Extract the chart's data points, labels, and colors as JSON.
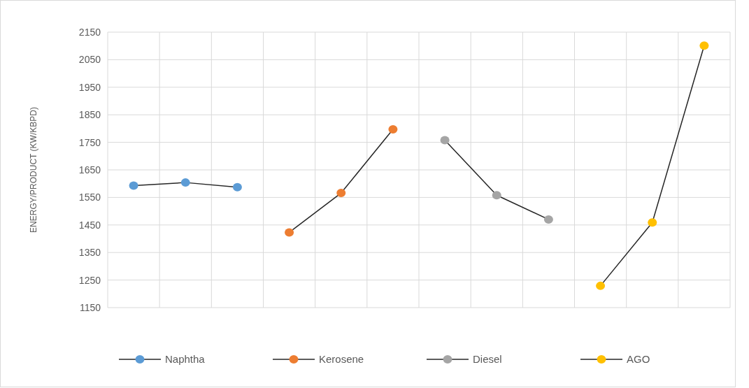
{
  "chart_data": {
    "type": "line",
    "ylabel": "ENERGY/PRODUCT (KW/KBPD)",
    "categories": [
      null,
      null,
      null,
      null,
      null,
      null,
      null,
      null,
      null,
      null,
      null,
      null
    ],
    "series": [
      {
        "name": "Naphtha",
        "color": "#5b9bd5",
        "values": [
          1593,
          1604,
          1587,
          null,
          null,
          null,
          null,
          null,
          null,
          null,
          null,
          null
        ]
      },
      {
        "name": "Kerosene",
        "color": "#ed7d31",
        "values": [
          null,
          null,
          null,
          1423,
          1566,
          1797,
          null,
          null,
          null,
          null,
          null,
          null
        ]
      },
      {
        "name": "Diesel",
        "color": "#a5a5a5",
        "values": [
          null,
          null,
          null,
          null,
          null,
          null,
          1758,
          1558,
          1470,
          null,
          null,
          null
        ]
      },
      {
        "name": "AGO",
        "color": "#ffc000",
        "values": [
          null,
          null,
          null,
          null,
          null,
          null,
          null,
          null,
          null,
          1229,
          1459,
          2101
        ]
      }
    ],
    "ylim": [
      1150,
      2150
    ],
    "yticks": [
      1150,
      1250,
      1350,
      1450,
      1550,
      1650,
      1750,
      1850,
      1950,
      2050,
      2150
    ],
    "grid": true,
    "legend": "bottom",
    "marker": "circle",
    "line_style": "solid"
  }
}
